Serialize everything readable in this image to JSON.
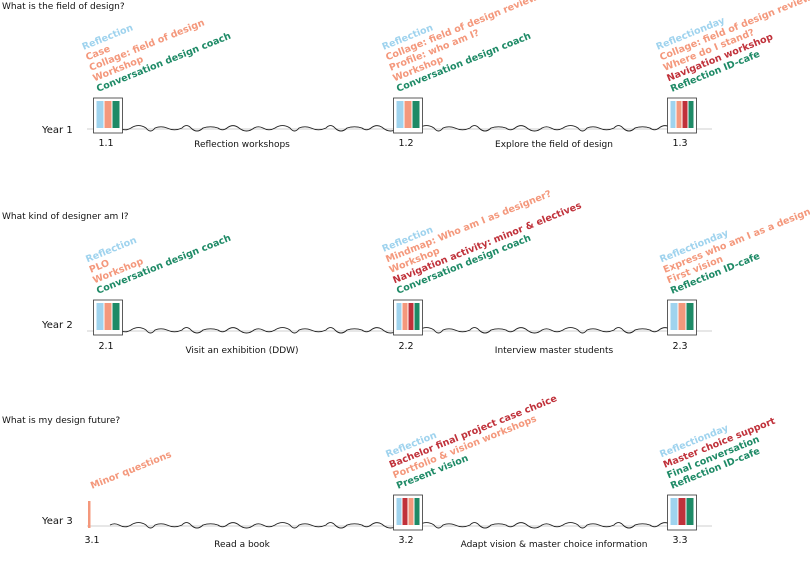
{
  "colors": {
    "blue": "#9fd3ee",
    "salmon": "#f4987c",
    "red": "#c0313a",
    "green": "#1e8a66"
  },
  "rows": [
    {
      "question": "What is the field of design?",
      "year": "Year 1",
      "activities": [
        "Reflection workshops",
        "Explore the field of design"
      ],
      "milestones": [
        {
          "num": "1.1",
          "bars": [
            "blue",
            "salmon",
            "green"
          ],
          "labels": [
            {
              "text": "Reflection",
              "color": "blue"
            },
            {
              "text": "Case",
              "color": "salmon"
            },
            {
              "text": "Collage: field of design",
              "color": "salmon"
            },
            {
              "text": "Workshop",
              "color": "salmon"
            },
            {
              "text": "Conversation design coach",
              "color": "green"
            }
          ]
        },
        {
          "num": "1.2",
          "bars": [
            "blue",
            "salmon",
            "green"
          ],
          "labels": [
            {
              "text": "Reflection",
              "color": "blue"
            },
            {
              "text": "Collage: field of design review",
              "color": "salmon"
            },
            {
              "text": "Profile: who am I?",
              "color": "salmon"
            },
            {
              "text": "Workshop",
              "color": "salmon"
            },
            {
              "text": "Conversation design coach",
              "color": "green"
            }
          ]
        },
        {
          "num": "1.3",
          "bars": [
            "blue",
            "salmon",
            "red",
            "green"
          ],
          "labels": [
            {
              "text": "Reflectionday",
              "color": "blue"
            },
            {
              "text": "Collage: field of design review",
              "color": "salmon"
            },
            {
              "text": "Where do I stand?",
              "color": "salmon"
            },
            {
              "text": "Navigation workshop",
              "color": "red"
            },
            {
              "text": "Reflection ID-cafe",
              "color": "green"
            }
          ]
        }
      ]
    },
    {
      "question": "What kind of designer am I?",
      "year": "Year 2",
      "activities": [
        "Visit an exhibition (DDW)",
        "Interview master students"
      ],
      "milestones": [
        {
          "num": "2.1",
          "bars": [
            "blue",
            "salmon",
            "green"
          ],
          "labels": [
            {
              "text": "Reflection",
              "color": "blue"
            },
            {
              "text": "PLO",
              "color": "salmon"
            },
            {
              "text": "Workshop",
              "color": "salmon"
            },
            {
              "text": "Conversation design coach",
              "color": "green"
            }
          ]
        },
        {
          "num": "2.2",
          "bars": [
            "blue",
            "salmon",
            "red",
            "green"
          ],
          "labels": [
            {
              "text": "Reflection",
              "color": "blue"
            },
            {
              "text": "Mindmap: Who am I as designer?",
              "color": "salmon"
            },
            {
              "text": "Workshop",
              "color": "salmon"
            },
            {
              "text": "Navigation activity: minor & electives",
              "color": "red"
            },
            {
              "text": "Conversation design coach",
              "color": "green"
            }
          ]
        },
        {
          "num": "2.3",
          "bars": [
            "blue",
            "salmon",
            "green"
          ],
          "labels": [
            {
              "text": "Reflectionday",
              "color": "blue"
            },
            {
              "text": "Express who am I as a designer",
              "color": "salmon"
            },
            {
              "text": "First vision",
              "color": "salmon"
            },
            {
              "text": "Reflection ID-cafe",
              "color": "green"
            }
          ]
        }
      ]
    },
    {
      "question": "What is my design future?",
      "year": "Year 3",
      "activities": [
        "Read a book",
        "Adapt vision & master choice information"
      ],
      "milestones": [
        {
          "num": "3.1",
          "bars": [
            "salmon"
          ],
          "labels": [
            {
              "text": "Minor questions",
              "color": "salmon"
            }
          ]
        },
        {
          "num": "3.2",
          "bars": [
            "blue",
            "red",
            "salmon",
            "green"
          ],
          "labels": [
            {
              "text": "Reflection",
              "color": "blue"
            },
            {
              "text": "Bachelor final project case choice",
              "color": "red"
            },
            {
              "text": "Portfolio & vision workshops",
              "color": "salmon"
            },
            {
              "text": "Present vision",
              "color": "green"
            }
          ]
        },
        {
          "num": "3.3",
          "bars": [
            "blue",
            "red",
            "green"
          ],
          "labels": [
            {
              "text": "Reflectionday",
              "color": "blue"
            },
            {
              "text": "Master choice support",
              "color": "red"
            },
            {
              "text": "Final conversation",
              "color": "green"
            },
            {
              "text": "Reflection ID-cafe",
              "color": "green"
            }
          ]
        }
      ]
    }
  ]
}
